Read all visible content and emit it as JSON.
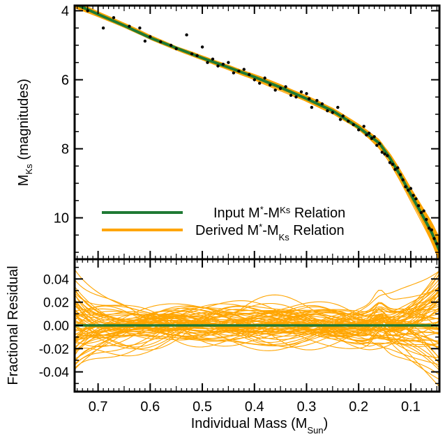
{
  "colors": {
    "input": "#1f7a34",
    "derived": "#ffa500",
    "points": "#000000"
  },
  "chart_data": [
    {
      "panel": "top",
      "type": "line",
      "ylabel_main": "M",
      "ylabel_sub": "Ks",
      "ylabel_tail": " (magnitudes)",
      "y_reversed": true,
      "ylim": [
        3.85,
        11.2
      ],
      "xlim": [
        0.745,
        0.045
      ],
      "y_ticks": [
        4,
        6,
        8,
        10
      ],
      "y_tick_labels": [
        "4",
        "6",
        "8",
        "10"
      ],
      "legend": {
        "placement": "bottom-right",
        "input": {
          "pre": "Input M",
          "sub1": "*",
          "mid": "-M",
          "sub2": "Ks",
          "post": " Relation"
        },
        "derived": {
          "pre": "Derived M",
          "sub1": "*",
          "mid": "-M",
          "sub2": "Ks",
          "post": " Relation"
        }
      },
      "input_relation": {
        "x": [
          0.745,
          0.7,
          0.65,
          0.6,
          0.55,
          0.5,
          0.45,
          0.4,
          0.35,
          0.3,
          0.25,
          0.2,
          0.16,
          0.14,
          0.12,
          0.1,
          0.08,
          0.06,
          0.045
        ],
        "y": [
          3.8,
          4.1,
          4.43,
          4.78,
          5.08,
          5.37,
          5.64,
          5.92,
          6.22,
          6.55,
          6.9,
          7.38,
          7.84,
          8.27,
          8.77,
          9.32,
          9.86,
          10.42,
          10.95
        ]
      },
      "points": {
        "x": [
          0.72,
          0.69,
          0.67,
          0.64,
          0.62,
          0.61,
          0.6,
          0.58,
          0.56,
          0.55,
          0.53,
          0.52,
          0.51,
          0.5,
          0.49,
          0.48,
          0.47,
          0.46,
          0.45,
          0.44,
          0.43,
          0.42,
          0.41,
          0.4,
          0.39,
          0.38,
          0.37,
          0.36,
          0.35,
          0.34,
          0.33,
          0.32,
          0.31,
          0.3,
          0.295,
          0.29,
          0.28,
          0.27,
          0.26,
          0.25,
          0.24,
          0.235,
          0.23,
          0.22,
          0.21,
          0.2,
          0.19,
          0.185,
          0.18,
          0.175,
          0.17,
          0.165,
          0.16,
          0.155,
          0.15,
          0.145,
          0.14,
          0.135,
          0.13,
          0.125,
          0.12,
          0.115,
          0.11,
          0.105,
          0.1,
          0.095,
          0.09,
          0.085,
          0.08,
          0.075,
          0.07,
          0.065,
          0.06,
          0.055,
          0.05
        ],
        "y": [
          4.0,
          4.5,
          4.2,
          4.45,
          4.5,
          4.88,
          4.75,
          4.9,
          5.0,
          5.1,
          4.7,
          5.25,
          5.3,
          5.05,
          5.5,
          5.4,
          5.6,
          5.55,
          5.5,
          5.8,
          5.75,
          5.7,
          5.85,
          6.0,
          6.1,
          5.95,
          6.15,
          6.3,
          6.25,
          6.2,
          6.45,
          6.5,
          6.35,
          6.4,
          6.55,
          6.8,
          6.6,
          6.7,
          6.9,
          6.95,
          6.8,
          7.15,
          7.05,
          7.2,
          7.3,
          7.45,
          7.35,
          7.6,
          7.55,
          7.7,
          7.65,
          7.9,
          7.85,
          8.1,
          8.15,
          8.2,
          8.4,
          8.45,
          8.6,
          8.55,
          8.75,
          8.9,
          9.1,
          9.2,
          9.15,
          9.35,
          9.45,
          9.65,
          9.85,
          9.8,
          10.05,
          10.3,
          10.35,
          10.6,
          10.75
        ]
      }
    },
    {
      "panel": "bottom",
      "type": "line",
      "ylabel": "Fractional Residual",
      "xlabel_main": "Individual Mass (M",
      "xlabel_sub": "Sun",
      "xlabel_tail": ")",
      "ylim": [
        -0.057,
        0.057
      ],
      "xlim": [
        0.745,
        0.045
      ],
      "y_ticks": [
        0.04,
        0.02,
        0.0,
        -0.02,
        -0.04
      ],
      "y_tick_labels": [
        "0.04",
        "0.02",
        "0.00",
        "-0.02",
        "-0.04"
      ],
      "x_ticks": [
        0.7,
        0.6,
        0.5,
        0.4,
        0.3,
        0.2,
        0.1
      ],
      "x_tick_labels": [
        "0.7",
        "0.6",
        "0.5",
        "0.4",
        "0.3",
        "0.2",
        "0.1"
      ],
      "input_residual": {
        "x": [
          0.745,
          0.045
        ],
        "y": [
          0.0,
          0.0
        ]
      }
    }
  ]
}
